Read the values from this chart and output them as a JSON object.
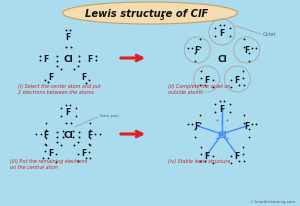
{
  "bg_color": "#aadcee",
  "title_bg": "#f5dcb0",
  "title_text": "Lewis structure of ClF",
  "title_sub": "5",
  "red": "#dd2222",
  "blue": "#4488ff",
  "dark": "#111111",
  "gray": "#aaaaaa",
  "label_color": "#cc2222",
  "annot_color": "#666666",
  "panel_i_label": "(i) Select the center atom and put\n2 electrons between the atoms",
  "panel_ii_label": "(ii) Complete the octet on\noutside atoms",
  "panel_iii_label": "(iii) Put the remaining electrons\non the central atom",
  "panel_iv_label": "(iv) Stable lewis structure",
  "watermark": "© knordislearning.com"
}
